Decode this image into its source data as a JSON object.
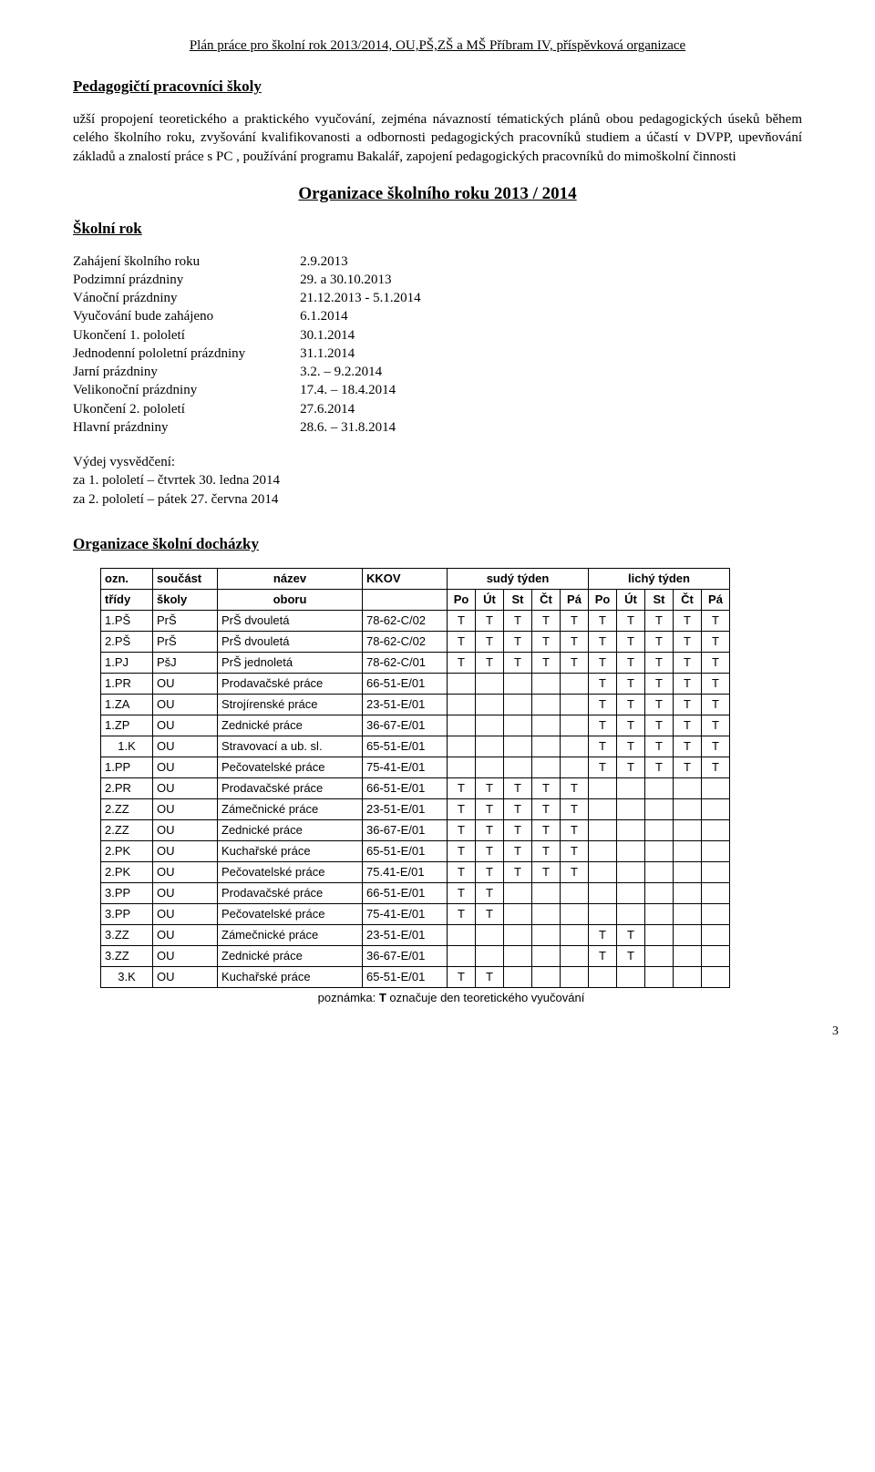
{
  "header": "Plán práce pro školní rok 2013/2014, OU,PŠ,ZŠ a MŠ Příbram IV, příspěvková organizace",
  "section1_title": "Pedagogičtí pracovníci školy",
  "section1_paragraph": "užší propojení teoretického a praktického vyučování, zejména návazností tématických plánů obou pedagogických úseků během celého školního roku, zvyšování kvalifikovanosti a odbornosti pedagogických pracovníků studiem a účastí v DVPP, upevňování základů a znalostí práce s PC , používání programu Bakalář, zapojení pedagogických pracovníků do mimoškolní činnosti",
  "center_title": "Organizace školního roku 2013 / 2014",
  "school_year_title": "Školní rok",
  "dates": [
    {
      "label": "Zahájení školního roku",
      "value": "2.9.2013"
    },
    {
      "label": "Podzimní prázdniny",
      "value": "29. a 30.10.2013"
    },
    {
      "label": "Vánoční prázdniny",
      "value": "21.12.2013 - 5.1.2014"
    },
    {
      "label": "Vyučování bude zahájeno",
      "value": "6.1.2014"
    },
    {
      "label": "Ukončení 1. pololetí",
      "value": "30.1.2014"
    },
    {
      "label": "Jednodenní pololetní prázdniny",
      "value": "31.1.2014"
    },
    {
      "label": "Jarní prázdniny",
      "value": "3.2. – 9.2.2014"
    },
    {
      "label": "Velikonoční prázdniny",
      "value": "17.4. – 18.4.2014"
    },
    {
      "label": "Ukončení 2. pololetí",
      "value": "27.6.2014"
    },
    {
      "label": "Hlavní prázdniny",
      "value": "28.6. – 31.8.2014"
    }
  ],
  "certif_title": "Výdej vysvědčení:",
  "certif_lines": [
    "za 1. pololetí – čtvrtek 30. ledna 2014",
    "za 2. pololetí – pátek 27. června 2014"
  ],
  "org_title": "Organizace školní docházky",
  "table_headers": {
    "row1": [
      "ozn.",
      "součást",
      "název",
      "KKOV",
      "sudý týden",
      "lichý týden"
    ],
    "row2_left": [
      "třídy",
      "školy",
      "oboru"
    ],
    "days": [
      "Po",
      "Út",
      "St",
      "Čt",
      "Pá",
      "Po",
      "Út",
      "St",
      "Čt",
      "Pá"
    ]
  },
  "rows": [
    {
      "ozn": "1.PŠ",
      "souc": "PrŠ",
      "nazev": "PrŠ dvouletá",
      "kkov": "78-62-C/02",
      "days": [
        "T",
        "T",
        "T",
        "T",
        "T",
        "T",
        "T",
        "T",
        "T",
        "T"
      ]
    },
    {
      "ozn": "2.PŠ",
      "souc": "PrŠ",
      "nazev": "PrŠ dvouletá",
      "kkov": "78-62-C/02",
      "days": [
        "T",
        "T",
        "T",
        "T",
        "T",
        "T",
        "T",
        "T",
        "T",
        "T"
      ]
    },
    {
      "ozn": "1.PJ",
      "souc": "PšJ",
      "nazev": "PrŠ jednoletá",
      "kkov": "78-62-C/01",
      "days": [
        "T",
        "T",
        "T",
        "T",
        "T",
        "T",
        "T",
        "T",
        "T",
        "T"
      ]
    },
    {
      "ozn": "1.PR",
      "souc": "OU",
      "nazev": "Prodavačské práce",
      "kkov": "66-51-E/01",
      "days": [
        "",
        "",
        "",
        "",
        "",
        "T",
        "T",
        "T",
        "T",
        "T"
      ]
    },
    {
      "ozn": "1.ZA",
      "souc": "OU",
      "nazev": "Strojírenské práce",
      "kkov": "23-51-E/01",
      "days": [
        "",
        "",
        "",
        "",
        "",
        "T",
        "T",
        "T",
        "T",
        "T"
      ]
    },
    {
      "ozn": "1.ZP",
      "souc": "OU",
      "nazev": "Zednické práce",
      "kkov": "36-67-E/01",
      "days": [
        "",
        "",
        "",
        "",
        "",
        "T",
        "T",
        "T",
        "T",
        "T"
      ]
    },
    {
      "ozn": "1.K",
      "souc": "OU",
      "nazev": "Stravovací a ub. sl.",
      "kkov": "65-51-E/01",
      "days": [
        "",
        "",
        "",
        "",
        "",
        "T",
        "T",
        "T",
        "T",
        "T"
      ]
    },
    {
      "ozn": "1.PP",
      "souc": "OU",
      "nazev": "Pečovatelské práce",
      "kkov": "75-41-E/01",
      "days": [
        "",
        "",
        "",
        "",
        "",
        "T",
        "T",
        "T",
        "T",
        "T"
      ]
    },
    {
      "ozn": "2.PR",
      "souc": "OU",
      "nazev": "Prodavačské práce",
      "kkov": "66-51-E/01",
      "days": [
        "T",
        "T",
        "T",
        "T",
        "T",
        "",
        "",
        "",
        "",
        ""
      ]
    },
    {
      "ozn": "2.ZZ",
      "souc": "OU",
      "nazev": "Zámečnické práce",
      "kkov": "23-51-E/01",
      "days": [
        "T",
        "T",
        "T",
        "T",
        "T",
        "",
        "",
        "",
        "",
        ""
      ]
    },
    {
      "ozn": "2.ZZ",
      "souc": "OU",
      "nazev": "Zednické práce",
      "kkov": "36-67-E/01",
      "days": [
        "T",
        "T",
        "T",
        "T",
        "T",
        "",
        "",
        "",
        "",
        ""
      ]
    },
    {
      "ozn": "2.PK",
      "souc": "OU",
      "nazev": "Kuchařské práce",
      "kkov": "65-51-E/01",
      "days": [
        "T",
        "T",
        "T",
        "T",
        "T",
        "",
        "",
        "",
        "",
        ""
      ]
    },
    {
      "ozn": "2.PK",
      "souc": "OU",
      "nazev": "Pečovatelské práce",
      "kkov": "75.41-E/01",
      "days": [
        "T",
        "T",
        "T",
        "T",
        "T",
        "",
        "",
        "",
        "",
        ""
      ]
    },
    {
      "ozn": "3.PP",
      "souc": "OU",
      "nazev": "Prodavačské práce",
      "kkov": "66-51-E/01",
      "days": [
        "T",
        "T",
        "",
        "",
        "",
        "",
        "",
        "",
        "",
        ""
      ]
    },
    {
      "ozn": "3.PP",
      "souc": "OU",
      "nazev": "Pečovatelské práce",
      "kkov": "75-41-E/01",
      "days": [
        "T",
        "T",
        "",
        "",
        "",
        "",
        "",
        "",
        "",
        ""
      ]
    },
    {
      "ozn": "3.ZZ",
      "souc": "OU",
      "nazev": "Zámečnické práce",
      "kkov": "23-51-E/01",
      "days": [
        "",
        "",
        "",
        "",
        "",
        "T",
        "T",
        "",
        "",
        ""
      ]
    },
    {
      "ozn": "3.ZZ",
      "souc": "OU",
      "nazev": "Zednické práce",
      "kkov": "36-67-E/01",
      "days": [
        "",
        "",
        "",
        "",
        "",
        "T",
        "T",
        "",
        "",
        ""
      ]
    },
    {
      "ozn": "3.K",
      "souc": "OU",
      "nazev": "Kuchařské práce",
      "kkov": "65-51-E/01",
      "days": [
        "T",
        "T",
        "",
        "",
        "",
        "",
        "",
        "",
        "",
        ""
      ]
    }
  ],
  "table_note_prefix": "poznámka: ",
  "table_note_bold": "T",
  "table_note_suffix": " označuje den teoretického vyučování",
  "page_number": "3"
}
